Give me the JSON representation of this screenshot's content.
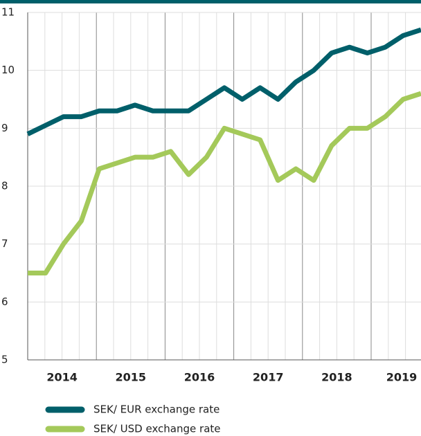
{
  "chart_data": {
    "type": "line",
    "categories": [
      null,
      null,
      null,
      null,
      null,
      null,
      null,
      null,
      null,
      null,
      null,
      null,
      null,
      null,
      null,
      null,
      null,
      null,
      null,
      null,
      null,
      null,
      null
    ],
    "year_labels": [
      "2014",
      "2015",
      "2016",
      "2017",
      "2018",
      "2019"
    ],
    "series": [
      {
        "name": "SEK/ EUR exchange rate",
        "color": "#005f6a",
        "values": [
          8.9,
          9.05,
          9.2,
          9.2,
          9.3,
          9.3,
          9.4,
          9.3,
          9.3,
          9.3,
          9.5,
          9.7,
          9.5,
          9.7,
          9.5,
          9.8,
          10.0,
          10.3,
          10.4,
          10.3,
          10.4,
          10.6,
          10.7
        ]
      },
      {
        "name": "SEK/ USD exchange rate",
        "color": "#a4c95a",
        "values": [
          6.5,
          6.5,
          7.0,
          7.4,
          8.3,
          8.4,
          8.5,
          8.5,
          8.6,
          8.2,
          8.5,
          9.0,
          8.9,
          8.8,
          8.1,
          8.3,
          8.1,
          8.7,
          9.0,
          9.0,
          9.2,
          9.5,
          9.6
        ]
      }
    ],
    "ylim": [
      5,
      11
    ],
    "yticks": [
      5,
      6,
      7,
      8,
      9,
      10,
      11
    ],
    "grid": true
  }
}
